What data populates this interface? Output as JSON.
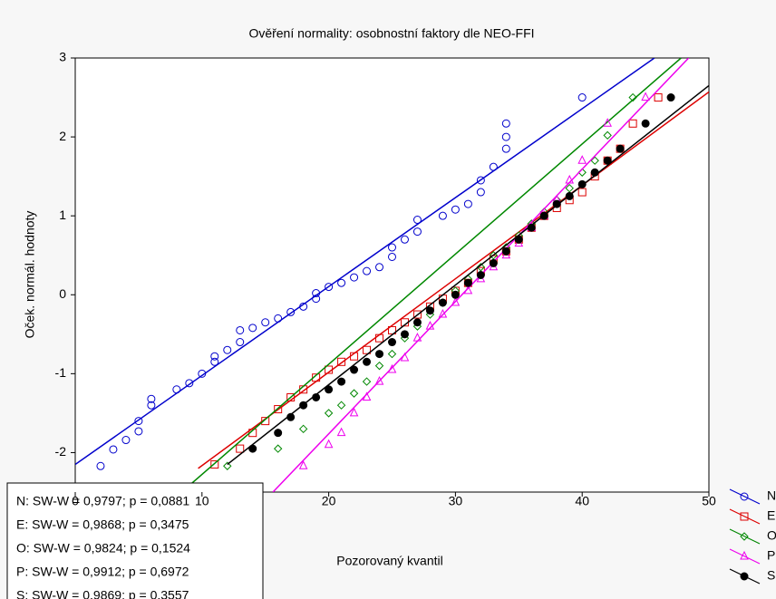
{
  "chart_data": {
    "type": "scatter",
    "title": "Ověření normality: osobnostní faktory dle NEO-FFI",
    "xlabel": "Pozorovaný kvantil",
    "ylabel": "Oček. normál. hodnoty",
    "xlim": [
      0,
      50
    ],
    "ylim": [
      -2.5,
      3
    ],
    "xticks": [
      0,
      10,
      20,
      30,
      40,
      50
    ],
    "yticks": [
      -2,
      -1,
      0,
      1,
      2,
      3
    ],
    "stats": [
      "N:  SW-W = 0,9797; p = 0,0881",
      "E:  SW-W = 0,9868; p = 0,3475",
      "O:  SW-W = 0,9824; p = 0,1524",
      "P:  SW-W = 0,9912; p = 0,6972",
      "S:  SW-W = 0,9869; p = 0,3557"
    ],
    "series": [
      {
        "name": "N",
        "color": "#0000cc",
        "marker": "circle",
        "x": [
          2,
          3,
          4,
          5,
          5,
          6,
          6,
          8,
          9,
          10,
          11,
          11,
          12,
          13,
          13,
          14,
          15,
          16,
          17,
          18,
          19,
          19,
          20,
          21,
          22,
          23,
          24,
          25,
          25,
          26,
          27,
          27,
          29,
          30,
          31,
          32,
          32,
          33,
          34,
          34,
          34,
          40
        ],
        "values": [
          -2.17,
          -1.96,
          -1.84,
          -1.73,
          -1.6,
          -1.4,
          -1.32,
          -1.2,
          -1.12,
          -1.0,
          -0.85,
          -0.78,
          -0.7,
          -0.6,
          -0.45,
          -0.42,
          -0.35,
          -0.3,
          -0.22,
          -0.15,
          -0.05,
          0.02,
          0.1,
          0.15,
          0.22,
          0.3,
          0.35,
          0.48,
          0.6,
          0.7,
          0.8,
          0.95,
          1.0,
          1.08,
          1.15,
          1.3,
          1.45,
          1.62,
          1.85,
          2.0,
          2.17,
          2.5
        ],
        "fit_x": [
          0,
          45.7
        ],
        "fit_y": [
          -2.15,
          3
        ]
      },
      {
        "name": "E",
        "color": "#dd0000",
        "marker": "square",
        "x": [
          11,
          13,
          14,
          15,
          16,
          17,
          18,
          19,
          20,
          21,
          22,
          23,
          24,
          25,
          26,
          27,
          28,
          29,
          30,
          31,
          32,
          33,
          34,
          35,
          36,
          37,
          38,
          39,
          40,
          41,
          42,
          43,
          44,
          46
        ],
        "values": [
          -2.15,
          -1.95,
          -1.75,
          -1.6,
          -1.45,
          -1.3,
          -1.2,
          -1.05,
          -0.95,
          -0.85,
          -0.78,
          -0.7,
          -0.55,
          -0.45,
          -0.35,
          -0.25,
          -0.15,
          -0.05,
          0.05,
          0.15,
          0.3,
          0.45,
          0.55,
          0.7,
          0.85,
          1.0,
          1.1,
          1.2,
          1.3,
          1.5,
          1.7,
          1.85,
          2.17,
          2.5
        ],
        "fit_x": [
          9.7,
          50
        ],
        "fit_y": [
          -2.2,
          2.57
        ]
      },
      {
        "name": "O",
        "color": "#008800",
        "marker": "diamond",
        "x": [
          12,
          16,
          18,
          20,
          21,
          22,
          23,
          24,
          25,
          26,
          27,
          28,
          29,
          30,
          31,
          32,
          33,
          34,
          35,
          36,
          37,
          38,
          39,
          40,
          41,
          42,
          44
        ],
        "values": [
          -2.17,
          -1.95,
          -1.7,
          -1.5,
          -1.4,
          -1.25,
          -1.1,
          -0.9,
          -0.75,
          -0.55,
          -0.4,
          -0.25,
          -0.1,
          0.05,
          0.2,
          0.35,
          0.5,
          0.6,
          0.75,
          0.9,
          1.05,
          1.2,
          1.35,
          1.55,
          1.7,
          2.02,
          2.5
        ],
        "fit_x": [
          8.4,
          47.8
        ],
        "fit_y": [
          -2.5,
          3
        ]
      },
      {
        "name": "P",
        "color": "#ee00ee",
        "marker": "triangle",
        "x": [
          18,
          20,
          21,
          22,
          23,
          24,
          25,
          26,
          27,
          28,
          29,
          30,
          31,
          32,
          33,
          34,
          35,
          36,
          37,
          38,
          39,
          40,
          42,
          45
        ],
        "values": [
          -2.17,
          -1.9,
          -1.75,
          -1.5,
          -1.3,
          -1.1,
          -0.95,
          -0.8,
          -0.55,
          -0.4,
          -0.25,
          -0.1,
          0.05,
          0.2,
          0.35,
          0.5,
          0.65,
          0.85,
          1.0,
          1.2,
          1.45,
          1.7,
          2.17,
          2.5
        ],
        "fit_x": [
          15.6,
          48.4
        ],
        "fit_y": [
          -2.5,
          3
        ]
      },
      {
        "name": "S",
        "color": "#000000",
        "marker": "dot",
        "x": [
          14,
          16,
          17,
          18,
          19,
          20,
          21,
          22,
          23,
          24,
          25,
          26,
          27,
          28,
          29,
          30,
          31,
          32,
          33,
          34,
          35,
          36,
          37,
          38,
          39,
          40,
          41,
          42,
          43,
          45,
          47
        ],
        "values": [
          -1.95,
          -1.75,
          -1.55,
          -1.4,
          -1.3,
          -1.2,
          -1.1,
          -0.95,
          -0.85,
          -0.75,
          -0.6,
          -0.5,
          -0.35,
          -0.2,
          -0.1,
          0.0,
          0.15,
          0.25,
          0.4,
          0.55,
          0.7,
          0.85,
          1.0,
          1.15,
          1.25,
          1.4,
          1.55,
          1.7,
          1.85,
          2.17,
          2.5
        ],
        "fit_x": [
          12,
          50
        ],
        "fit_y": [
          -2.15,
          2.65
        ]
      }
    ]
  }
}
